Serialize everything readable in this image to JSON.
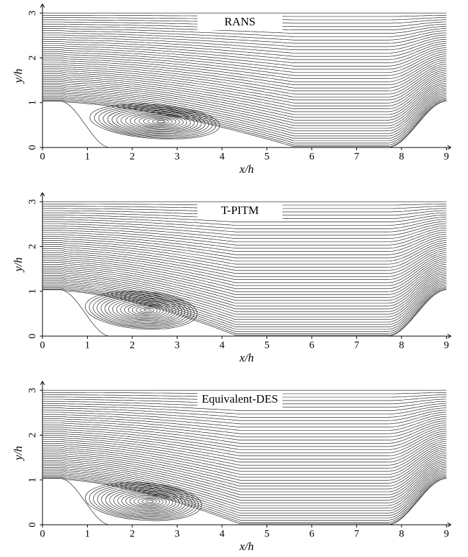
{
  "chart_data": [
    {
      "type": "streamline",
      "title": "RANS",
      "x_label": "x/h",
      "y_label": "y/h",
      "xlim": [
        0,
        9.1
      ],
      "ylim": [
        0,
        3.2
      ],
      "xticks": [
        0,
        1,
        2,
        3,
        4,
        5,
        6,
        7,
        8,
        9
      ],
      "yticks": [
        0,
        1,
        2,
        3
      ]
    },
    {
      "type": "streamline",
      "title": "T-PITM",
      "x_label": "x/h",
      "y_label": "y/h",
      "xlim": [
        0,
        9.1
      ],
      "ylim": [
        0,
        3.2
      ],
      "xticks": [
        0,
        1,
        2,
        3,
        4,
        5,
        6,
        7,
        8,
        9
      ],
      "yticks": [
        0,
        1,
        2,
        3
      ]
    },
    {
      "type": "streamline",
      "title": "Equivalent-DES",
      "x_label": "x/h",
      "y_label": "y/h",
      "xlim": [
        0,
        9.1
      ],
      "ylim": [
        0,
        3.2
      ],
      "xticks": [
        0,
        1,
        2,
        3,
        4,
        5,
        6,
        7,
        8,
        9
      ],
      "yticks": [
        0,
        1,
        2,
        3
      ]
    }
  ]
}
